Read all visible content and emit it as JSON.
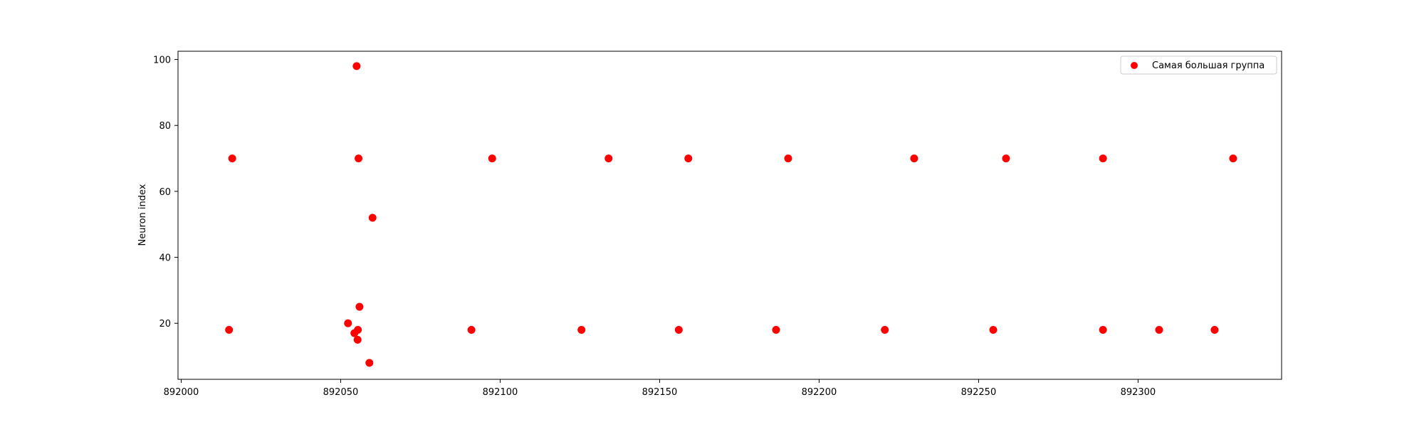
{
  "chart_data": {
    "type": "scatter",
    "title": "",
    "xlabel": "",
    "ylabel": "Neuron index",
    "xlim": [
      891999,
      892345
    ],
    "ylim": [
      3,
      102.5
    ],
    "xticks": [
      892000,
      892050,
      892100,
      892150,
      892200,
      892250,
      892300
    ],
    "xtick_labels": [
      "892000",
      "892050",
      "892100",
      "892150",
      "892200",
      "892250",
      "892300"
    ],
    "yticks": [
      20,
      40,
      60,
      80,
      100
    ],
    "ytick_labels": [
      "20",
      "40",
      "60",
      "80",
      "100"
    ],
    "grid": false,
    "legend_position": "top-right",
    "series": [
      {
        "name": "Самая большая группа",
        "color": "#ff0000",
        "points": [
          [
            892015,
            18
          ],
          [
            892016,
            70
          ],
          [
            892052.3,
            20
          ],
          [
            892054.3,
            17
          ],
          [
            892055,
            98
          ],
          [
            892055.3,
            15
          ],
          [
            892055.4,
            18
          ],
          [
            892055.6,
            70
          ],
          [
            892055.9,
            25
          ],
          [
            892059,
            8
          ],
          [
            892060,
            52
          ],
          [
            892091,
            18
          ],
          [
            892097.5,
            70
          ],
          [
            892125.5,
            18
          ],
          [
            892134,
            70
          ],
          [
            892156,
            18
          ],
          [
            892159,
            70
          ],
          [
            892186.5,
            18
          ],
          [
            892190.3,
            70
          ],
          [
            892220.6,
            18
          ],
          [
            892229.8,
            70
          ],
          [
            892254.6,
            18
          ],
          [
            892258.6,
            70
          ],
          [
            892289,
            18
          ],
          [
            892289,
            70
          ],
          [
            892306.6,
            18
          ],
          [
            892324,
            18
          ],
          [
            892329.8,
            70
          ]
        ]
      }
    ]
  }
}
